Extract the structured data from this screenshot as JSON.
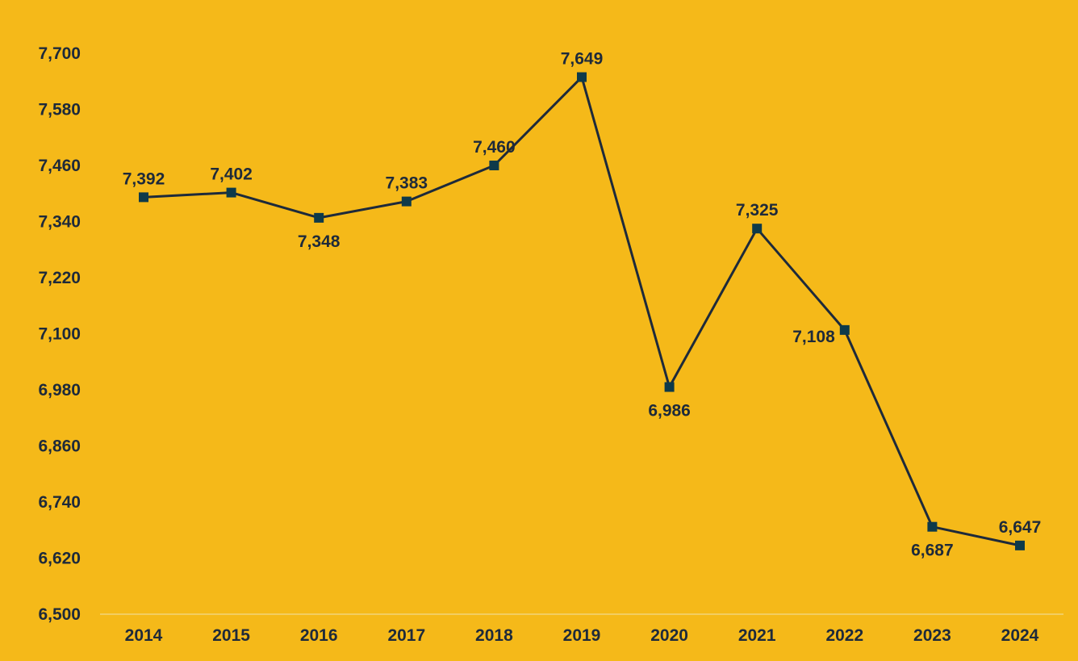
{
  "colors": {
    "background": "#F5B919",
    "line": "#1E2A3A",
    "marker": "#0E3A4A",
    "text": "#1E2A3A",
    "axis": "#F2D57A"
  },
  "chart_data": {
    "type": "line",
    "title": "",
    "xlabel": "",
    "ylabel": "",
    "categories": [
      "2014",
      "2015",
      "2016",
      "2017",
      "2018",
      "2019",
      "2020",
      "2021",
      "2022",
      "2023",
      "2024"
    ],
    "series": [
      {
        "values": [
          7392,
          7402,
          7348,
          7383,
          7460,
          7649,
          6986,
          7325,
          7108,
          6687,
          6647
        ],
        "data_labels": [
          "7,392",
          "7,402",
          "7,348",
          "7,383",
          "7,460",
          "7,649",
          "6,986",
          "7,325",
          "7,108",
          "6,687",
          "6,647"
        ],
        "label_placement": [
          "above",
          "above",
          "below",
          "above",
          "above",
          "above",
          "below",
          "above",
          "left",
          "below",
          "above"
        ],
        "marker": "square"
      }
    ],
    "ylim": [
      6500,
      7700
    ],
    "y_ticks": [
      6500,
      6620,
      6740,
      6860,
      6980,
      7100,
      7220,
      7340,
      7460,
      7580,
      7700
    ],
    "y_tick_labels": [
      "6,500",
      "6,620",
      "6,740",
      "6,860",
      "6,980",
      "7,100",
      "7,220",
      "7,340",
      "7,460",
      "7,580",
      "7,700"
    ],
    "grid": false,
    "legend": "none"
  }
}
